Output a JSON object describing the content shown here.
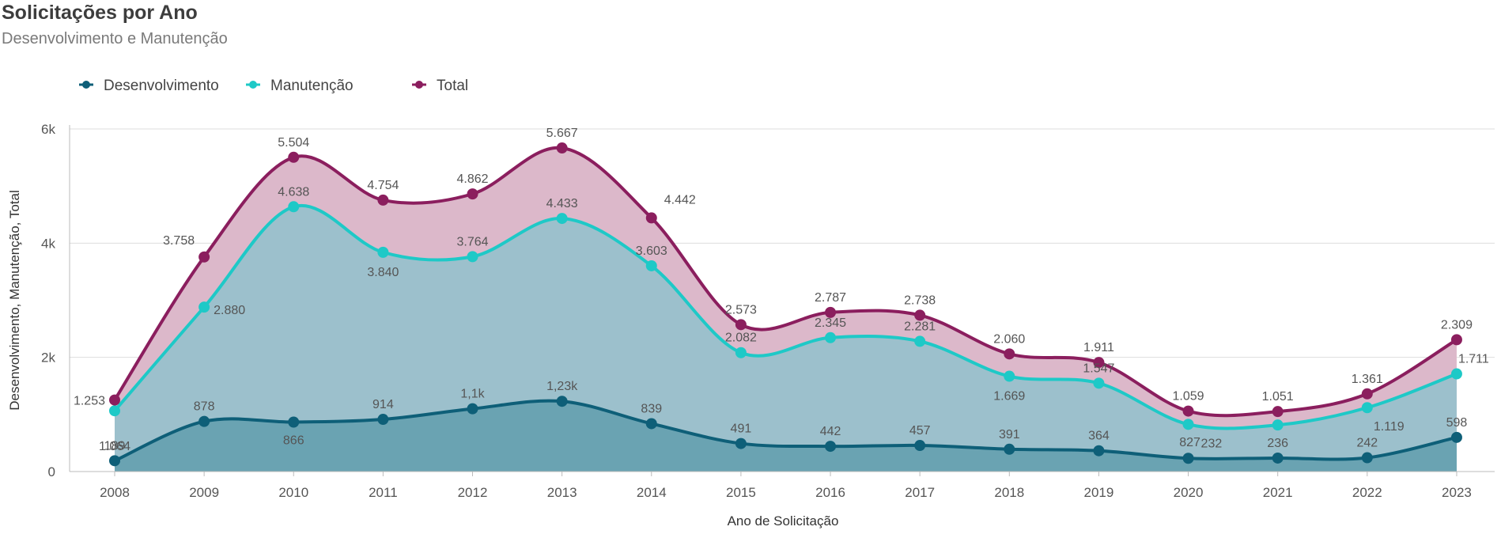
{
  "title": "Solicitações por Ano",
  "subtitle": "Desenvolvimento e Manutenção",
  "chart_data": {
    "type": "area",
    "title": "Solicitações por Ano",
    "subtitle": "Desenvolvimento e Manutenção",
    "xlabel": "Ano de Solicitação",
    "ylabel": "Desenvolvimento, Manutenção, Total",
    "ylim": [
      0,
      6000
    ],
    "yticks": [
      0,
      2000,
      4000,
      6000
    ],
    "ytick_labels": [
      "0",
      "2k",
      "4k",
      "6k"
    ],
    "grid": true,
    "legend_position": "top-left",
    "categories": [
      "2008",
      "2009",
      "2010",
      "2011",
      "2012",
      "2013",
      "2014",
      "2015",
      "2016",
      "2017",
      "2018",
      "2019",
      "2020",
      "2021",
      "2022",
      "2023"
    ],
    "series": [
      {
        "name": "Desenvolvimento",
        "color": "#0e5f78",
        "fill": "#6aa3b2",
        "values": [
          189,
          878,
          866,
          914,
          1100,
          1230,
          839,
          491,
          442,
          457,
          391,
          364,
          232,
          236,
          242,
          598
        ],
        "labels": [
          "189",
          "878",
          "866",
          "914",
          "1,1k",
          "1,23k",
          "839",
          "491",
          "442",
          "457",
          "391",
          "364",
          "232",
          "236",
          "242",
          "598"
        ]
      },
      {
        "name": "Manutenção",
        "color": "#1ec9c7",
        "fill": "#9cc0cc",
        "values": [
          1064,
          2880,
          4638,
          3840,
          3764,
          4433,
          3603,
          2082,
          2345,
          2281,
          1669,
          1547,
          827,
          815,
          1119,
          1711
        ],
        "labels": [
          "1.064",
          "2.880",
          "4.638",
          "3.840",
          "3.764",
          "4.433",
          "3.603",
          "2.082",
          "2.345",
          "2.281",
          "1.669",
          "1.547",
          "827",
          "",
          "1.119",
          "1.711"
        ]
      },
      {
        "name": "Total",
        "color": "#8b1e5e",
        "fill": "#dcb8ca",
        "values": [
          1253,
          3758,
          5504,
          4754,
          4862,
          5667,
          4442,
          2573,
          2787,
          2738,
          2060,
          1911,
          1059,
          1051,
          1361,
          2309
        ],
        "labels": [
          "1.253",
          "3.758",
          "5.504",
          "4.754",
          "4.862",
          "5.667",
          "4.442",
          "2.573",
          "2.787",
          "2.738",
          "2.060",
          "1.911",
          "1.059",
          "1.051",
          "1.361",
          "2.309"
        ]
      }
    ]
  }
}
